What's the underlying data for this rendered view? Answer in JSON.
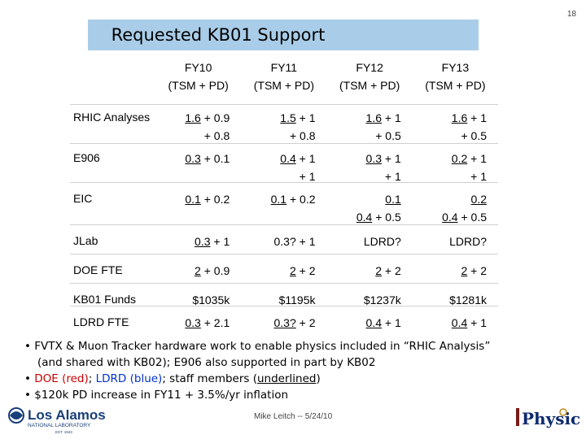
{
  "slide_number": "18",
  "title": "Requested KB01 Support",
  "table": {
    "headers": [
      {
        "year": "FY10",
        "sub": "(TSM + PD)"
      },
      {
        "year": "FY11",
        "sub": "(TSM + PD)"
      },
      {
        "year": "FY12",
        "sub": "(TSM + PD)"
      },
      {
        "year": "FY13",
        "sub": "(TSM + PD)"
      }
    ],
    "rows": [
      {
        "label": "RHIC Analyses",
        "cells": [
          {
            "u": "1.6",
            "rest": " + 0.9",
            "l2": "+ 0.8"
          },
          {
            "u": "1.5",
            "rest": " + 1",
            "l2": "+ 0.8"
          },
          {
            "u": "1.6",
            "rest": " + 1",
            "l2": "+ 0.5"
          },
          {
            "u": "1.6",
            "rest": " + 1",
            "l2": "+ 0.5"
          }
        ]
      },
      {
        "label": "E906",
        "cells": [
          {
            "u": "0.3",
            "rest": " + 0.1",
            "l2": ""
          },
          {
            "u": "0.4",
            "rest": " + 1",
            "l2": "+ 1"
          },
          {
            "u": "0.3",
            "rest": " + 1",
            "l2": "+ 1"
          },
          {
            "u": "0.2",
            "rest": " + 1",
            "l2": "+ 1"
          }
        ]
      },
      {
        "label": "EIC",
        "cells": [
          {
            "u": "0.1",
            "rest": " + 0.2",
            "l2": ""
          },
          {
            "u": "0.1",
            "rest": " + 0.2",
            "l2": ""
          },
          {
            "u": "0.1",
            "rest": "",
            "l2u": "0.4",
            "l2": " + 0.5"
          },
          {
            "u": "0.2",
            "rest": "",
            "l2u": "0.4",
            "l2": " + 0.5"
          }
        ]
      },
      {
        "label": "JLab",
        "cells": [
          {
            "u": "0.3",
            "rest": " + 1"
          },
          {
            "u": "",
            "rest": "0.3? + 1"
          },
          {
            "u": "",
            "rest": "LDRD?"
          },
          {
            "u": "",
            "rest": "LDRD?"
          }
        ]
      },
      {
        "label": "DOE FTE",
        "cells": [
          {
            "u": "2",
            "rest": " + 0.9"
          },
          {
            "u": "2",
            "rest": " + 2"
          },
          {
            "u": "2",
            "rest": " + 2"
          },
          {
            "u": "2",
            "rest": " + 2"
          }
        ]
      },
      {
        "label": "KB01 Funds",
        "cells": [
          {
            "u": "",
            "rest": "$1035k"
          },
          {
            "u": "",
            "rest": "$1195k"
          },
          {
            "u": "",
            "rest": "$1237k"
          },
          {
            "u": "",
            "rest": "$1281k"
          }
        ]
      },
      {
        "label": "LDRD FTE",
        "cells": [
          {
            "u": "0.3",
            "rest": " + 2.1"
          },
          {
            "u": "0.3?",
            "rest": " + 2"
          },
          {
            "u": "0.4",
            "rest": " + 1"
          },
          {
            "u": "0.4",
            "rest": " + 1"
          }
        ]
      }
    ]
  },
  "bullets": {
    "b1_line1": "• FVTX & Muon Tracker hardware work to enable physics included in “RHIC Analysis”",
    "b1_line2": "(and shared with KB02); E906 also supported in part by KB02",
    "b2_bullet": "• ",
    "b2_doe": "DOE (red)",
    "b2_sep": "; ",
    "b2_ldrd": "LDRD (blue)",
    "b2_mid": "; staff members (",
    "b2_under": "underlined",
    "b2_end": ")",
    "b3": "• $120k PD increase in FY11 + 3.5%/yr inflation"
  },
  "footer": "Mike Leitch -- 5/24/10",
  "logos": {
    "los_alamos": "Los Alamos NATIONAL LABORATORY EST. 1943",
    "physics": "Physics"
  },
  "colors": {
    "title_bg": "#a9cde8",
    "red": "#cc0000",
    "blue": "#0033cc"
  }
}
